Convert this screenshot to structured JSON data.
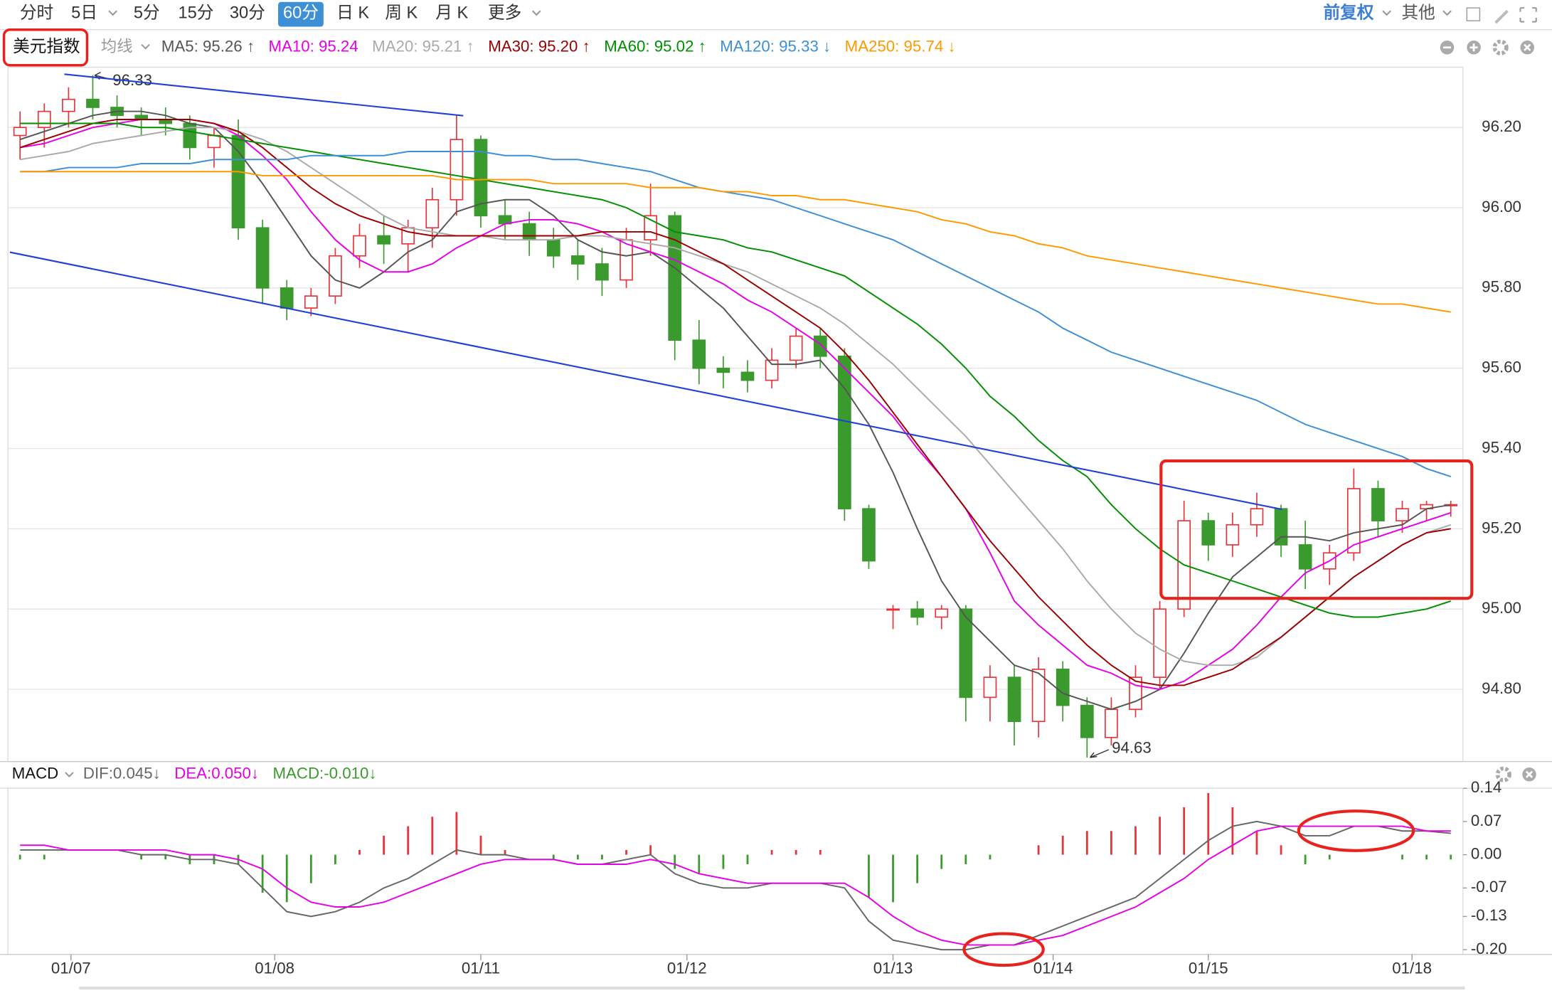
{
  "toolbar": {
    "tabs": [
      "分时",
      "5日",
      "5分",
      "15分",
      "30分",
      "60分",
      "日 K",
      "周 K",
      "月 K",
      "更多"
    ],
    "active_tab": 5,
    "right_menu": [
      "前复权",
      "其他"
    ]
  },
  "chart_data": [
    {
      "type": "candlestick",
      "symbol": "美元指数",
      "ma_menu": "均线",
      "up_color": "#e8333a",
      "down_color": "#3a9a2e",
      "grid": true,
      "open": [
        96.18,
        96.2,
        96.24,
        96.27,
        96.25,
        96.23,
        96.22,
        96.21,
        96.15,
        96.18,
        95.95,
        95.8,
        95.75,
        95.78,
        95.88,
        95.93,
        95.91,
        95.95,
        96.02,
        96.17,
        95.98,
        95.96,
        95.92,
        95.88,
        95.86,
        95.82,
        95.92,
        95.98,
        95.67,
        95.6,
        95.59,
        95.57,
        95.62,
        95.68,
        95.63,
        95.25,
        95.0,
        95.0,
        94.98,
        95.0,
        94.78,
        94.83,
        94.72,
        94.85,
        94.76,
        94.68,
        94.75,
        94.83,
        95.0,
        95.22,
        95.16,
        95.21,
        95.25,
        95.16,
        95.1,
        95.14,
        95.3,
        95.22,
        95.25,
        95.26
      ],
      "high": [
        96.24,
        96.26,
        96.3,
        96.33,
        96.28,
        96.25,
        96.25,
        96.23,
        96.2,
        96.22,
        95.97,
        95.82,
        95.8,
        95.9,
        95.96,
        95.98,
        95.97,
        96.05,
        96.23,
        96.18,
        96.02,
        95.99,
        95.95,
        95.92,
        95.9,
        95.95,
        96.06,
        95.99,
        95.72,
        95.63,
        95.62,
        95.65,
        95.7,
        95.7,
        95.65,
        95.26,
        95.01,
        95.02,
        95.01,
        95.01,
        94.86,
        94.86,
        94.88,
        94.87,
        94.78,
        94.78,
        94.86,
        95.02,
        95.27,
        95.24,
        95.24,
        95.29,
        95.26,
        95.22,
        95.16,
        95.35,
        95.32,
        95.27,
        95.27,
        95.27
      ],
      "low": [
        96.12,
        96.15,
        96.2,
        96.22,
        96.2,
        96.18,
        96.18,
        96.12,
        96.1,
        95.92,
        95.76,
        95.72,
        95.73,
        95.76,
        95.85,
        95.86,
        95.84,
        95.9,
        95.98,
        95.95,
        95.92,
        95.88,
        95.85,
        95.82,
        95.78,
        95.8,
        95.88,
        95.62,
        95.56,
        95.55,
        95.54,
        95.55,
        95.6,
        95.6,
        95.22,
        95.1,
        94.95,
        94.96,
        94.95,
        94.72,
        94.72,
        94.66,
        94.68,
        94.72,
        94.63,
        94.66,
        94.73,
        94.8,
        94.98,
        95.12,
        95.13,
        95.18,
        95.13,
        95.05,
        95.06,
        95.12,
        95.18,
        95.19,
        95.22,
        95.23
      ],
      "close": [
        96.2,
        96.24,
        96.27,
        96.25,
        96.23,
        96.22,
        96.21,
        96.15,
        96.18,
        95.95,
        95.8,
        95.75,
        95.78,
        95.88,
        95.93,
        95.91,
        95.95,
        96.02,
        96.17,
        95.98,
        95.96,
        95.92,
        95.88,
        95.86,
        95.82,
        95.92,
        95.98,
        95.67,
        95.6,
        95.59,
        95.57,
        95.62,
        95.68,
        95.63,
        95.25,
        95.12,
        95.0,
        94.98,
        95.0,
        94.78,
        94.83,
        94.72,
        94.85,
        94.76,
        94.68,
        94.75,
        94.83,
        95.0,
        95.22,
        95.16,
        95.21,
        95.25,
        95.16,
        95.1,
        95.14,
        95.3,
        95.22,
        95.25,
        95.26,
        95.26
      ],
      "series": [
        {
          "name": "MA5: 95.26 ↑",
          "color": "#555555",
          "values": [
            96.17,
            96.19,
            96.21,
            96.23,
            96.24,
            96.24,
            96.23,
            96.21,
            96.2,
            96.14,
            96.06,
            95.97,
            95.88,
            95.82,
            95.8,
            95.84,
            95.89,
            95.92,
            95.99,
            96.01,
            96.02,
            96.02,
            95.98,
            95.92,
            95.89,
            95.88,
            95.89,
            95.85,
            95.8,
            95.75,
            95.68,
            95.61,
            95.61,
            95.62,
            95.55,
            95.46,
            95.34,
            95.2,
            95.07,
            94.98,
            94.92,
            94.86,
            94.84,
            94.79,
            94.77,
            94.75,
            94.77,
            94.8,
            94.89,
            94.99,
            95.08,
            95.13,
            95.18,
            95.18,
            95.17,
            95.19,
            95.2,
            95.21,
            95.25,
            95.26
          ]
        },
        {
          "name": "MA10: 95.24",
          "color": "#e600e6",
          "values": [
            96.15,
            96.16,
            96.18,
            96.2,
            96.21,
            96.22,
            96.22,
            96.22,
            96.21,
            96.18,
            96.13,
            96.07,
            95.99,
            95.92,
            95.87,
            95.84,
            95.84,
            95.86,
            95.9,
            95.93,
            95.96,
            95.97,
            95.97,
            95.96,
            95.94,
            95.91,
            95.89,
            95.87,
            95.84,
            95.81,
            95.77,
            95.74,
            95.7,
            95.66,
            95.6,
            95.54,
            95.48,
            95.4,
            95.33,
            95.25,
            95.14,
            95.02,
            94.96,
            94.91,
            94.86,
            94.84,
            94.81,
            94.8,
            94.82,
            94.86,
            94.9,
            94.96,
            95.03,
            95.09,
            95.12,
            95.16,
            95.18,
            95.2,
            95.22,
            95.24
          ]
        },
        {
          "name": "MA20: 95.21 ↑",
          "color": "#aaaaaa",
          "values": [
            96.12,
            96.13,
            96.14,
            96.16,
            96.17,
            96.18,
            96.19,
            96.2,
            96.2,
            96.19,
            96.17,
            96.14,
            96.1,
            96.06,
            96.02,
            95.98,
            95.95,
            95.94,
            95.93,
            95.93,
            95.92,
            95.92,
            95.92,
            95.93,
            95.93,
            95.92,
            95.91,
            95.9,
            95.88,
            95.86,
            95.84,
            95.81,
            95.78,
            95.75,
            95.71,
            95.66,
            95.61,
            95.55,
            95.49,
            95.43,
            95.36,
            95.29,
            95.22,
            95.15,
            95.07,
            95.0,
            94.94,
            94.9,
            94.87,
            94.86,
            94.86,
            94.88,
            94.93,
            94.98,
            95.03,
            95.08,
            95.12,
            95.16,
            95.19,
            95.21
          ]
        },
        {
          "name": "MA30: 95.20 ↑",
          "color": "#9a0000",
          "values": [
            96.15,
            96.17,
            96.19,
            96.21,
            96.22,
            96.22,
            96.22,
            96.22,
            96.21,
            96.19,
            96.15,
            96.1,
            96.05,
            96.01,
            95.98,
            95.96,
            95.94,
            95.93,
            95.93,
            95.93,
            95.93,
            95.93,
            95.93,
            95.93,
            95.94,
            95.94,
            95.94,
            95.92,
            95.89,
            95.86,
            95.82,
            95.78,
            95.74,
            95.7,
            95.64,
            95.57,
            95.49,
            95.41,
            95.33,
            95.25,
            95.17,
            95.1,
            95.03,
            94.97,
            94.91,
            94.86,
            94.82,
            94.81,
            94.81,
            94.83,
            94.85,
            94.89,
            94.93,
            94.98,
            95.03,
            95.08,
            95.12,
            95.16,
            95.19,
            95.2
          ]
        },
        {
          "name": "MA60: 95.02 ↑",
          "color": "#008f00",
          "values": [
            96.21,
            96.21,
            96.21,
            96.21,
            96.21,
            96.2,
            96.2,
            96.19,
            96.18,
            96.17,
            96.16,
            96.15,
            96.14,
            96.13,
            96.12,
            96.11,
            96.1,
            96.09,
            96.08,
            96.07,
            96.06,
            96.05,
            96.04,
            96.03,
            96.02,
            96.0,
            95.97,
            95.94,
            95.93,
            95.92,
            95.9,
            95.89,
            95.87,
            95.85,
            95.83,
            95.79,
            95.75,
            95.71,
            95.66,
            95.6,
            95.53,
            95.48,
            95.42,
            95.37,
            95.33,
            95.26,
            95.2,
            95.15,
            95.11,
            95.09,
            95.07,
            95.05,
            95.03,
            95.01,
            94.99,
            94.98,
            94.98,
            94.99,
            95.0,
            95.02
          ]
        },
        {
          "name": "MA120: 95.33 ↓",
          "color": "#3d8fd6",
          "values": [
            96.09,
            96.09,
            96.1,
            96.1,
            96.1,
            96.11,
            96.11,
            96.11,
            96.12,
            96.12,
            96.12,
            96.12,
            96.13,
            96.13,
            96.13,
            96.13,
            96.14,
            96.14,
            96.14,
            96.14,
            96.13,
            96.13,
            96.12,
            96.12,
            96.11,
            96.1,
            96.09,
            96.07,
            96.05,
            96.04,
            96.03,
            96.02,
            96.0,
            95.98,
            95.96,
            95.94,
            95.92,
            95.89,
            95.86,
            95.83,
            95.8,
            95.77,
            95.74,
            95.7,
            95.67,
            95.64,
            95.62,
            95.6,
            95.58,
            95.56,
            95.54,
            95.52,
            95.49,
            95.46,
            95.44,
            95.42,
            95.4,
            95.38,
            95.35,
            95.33
          ]
        },
        {
          "name": "MA250: 95.74 ↓",
          "color": "#ff9900",
          "values": [
            96.09,
            96.09,
            96.09,
            96.09,
            96.09,
            96.09,
            96.09,
            96.09,
            96.09,
            96.09,
            96.08,
            96.08,
            96.08,
            96.08,
            96.08,
            96.08,
            96.08,
            96.08,
            96.07,
            96.07,
            96.07,
            96.07,
            96.06,
            96.06,
            96.06,
            96.06,
            96.05,
            96.05,
            96.05,
            96.04,
            96.04,
            96.03,
            96.03,
            96.02,
            96.02,
            96.01,
            96.0,
            95.99,
            95.97,
            95.96,
            95.94,
            95.93,
            95.91,
            95.9,
            95.88,
            95.87,
            95.86,
            95.85,
            95.84,
            95.83,
            95.82,
            95.81,
            95.8,
            95.79,
            95.78,
            95.77,
            95.76,
            95.76,
            95.75,
            95.74
          ]
        }
      ],
      "ylim": [
        94.62,
        96.35
      ],
      "yticks": [
        {
          "value": 94.8,
          "label": "94.80"
        },
        {
          "value": 95,
          "label": "95.00"
        },
        {
          "value": 95.2,
          "label": "95.20"
        },
        {
          "value": 95.4,
          "label": "95.40"
        },
        {
          "value": 95.6,
          "label": "95.60"
        },
        {
          "value": 95.8,
          "label": "95.80"
        },
        {
          "value": 96,
          "label": "96.00"
        },
        {
          "value": 96.2,
          "label": "96.20"
        }
      ]
    },
    {
      "type": "macd",
      "title": "MACD",
      "grid": false,
      "series": [
        {
          "name": "DIF:0.045↓",
          "color": "#666666",
          "kind": "line",
          "values": [
            0.01,
            0.01,
            0.01,
            0.01,
            0.01,
            0.0,
            0.0,
            -0.01,
            -0.01,
            -0.02,
            -0.07,
            -0.12,
            -0.13,
            -0.12,
            -0.1,
            -0.07,
            -0.05,
            -0.02,
            0.01,
            0.0,
            0.0,
            -0.01,
            -0.01,
            -0.02,
            -0.02,
            -0.01,
            0.0,
            -0.04,
            -0.06,
            -0.07,
            -0.07,
            -0.06,
            -0.06,
            -0.06,
            -0.07,
            -0.14,
            -0.18,
            -0.19,
            -0.2,
            -0.2,
            -0.19,
            -0.19,
            -0.17,
            -0.15,
            -0.13,
            -0.11,
            -0.09,
            -0.05,
            -0.01,
            0.03,
            0.06,
            0.07,
            0.06,
            0.04,
            0.04,
            0.06,
            0.06,
            0.05,
            0.05,
            0.045
          ]
        },
        {
          "name": "DEA:0.050↓",
          "color": "#e600e6",
          "kind": "line",
          "values": [
            0.02,
            0.02,
            0.01,
            0.01,
            0.01,
            0.01,
            0.01,
            0.0,
            0.0,
            -0.01,
            -0.03,
            -0.07,
            -0.1,
            -0.11,
            -0.11,
            -0.1,
            -0.08,
            -0.06,
            -0.04,
            -0.02,
            -0.01,
            -0.01,
            -0.01,
            -0.02,
            -0.02,
            -0.02,
            -0.01,
            -0.02,
            -0.04,
            -0.05,
            -0.06,
            -0.06,
            -0.06,
            -0.06,
            -0.06,
            -0.09,
            -0.13,
            -0.16,
            -0.18,
            -0.19,
            -0.19,
            -0.19,
            -0.18,
            -0.17,
            -0.15,
            -0.13,
            -0.11,
            -0.08,
            -0.05,
            -0.01,
            0.02,
            0.05,
            0.06,
            0.06,
            0.06,
            0.06,
            0.06,
            0.06,
            0.05,
            0.05
          ]
        },
        {
          "name": "MACD:-0.010↓",
          "color": "#3a9a2e",
          "up_color": "#e8333a",
          "kind": "bar",
          "values": [
            -0.01,
            -0.01,
            0.0,
            0.0,
            0.0,
            -0.01,
            -0.01,
            -0.02,
            -0.02,
            -0.02,
            -0.08,
            -0.1,
            -0.06,
            -0.02,
            0.01,
            0.04,
            0.06,
            0.08,
            0.09,
            0.04,
            0.01,
            0.0,
            -0.01,
            -0.01,
            -0.01,
            0.01,
            0.02,
            -0.03,
            -0.04,
            -0.03,
            -0.02,
            0.01,
            0.01,
            0.01,
            0.0,
            -0.09,
            -0.1,
            -0.06,
            -0.03,
            -0.02,
            -0.01,
            0.0,
            0.02,
            0.04,
            0.05,
            0.05,
            0.06,
            0.08,
            0.1,
            0.13,
            0.1,
            0.05,
            0.02,
            -0.02,
            -0.01,
            0.0,
            0.0,
            -0.01,
            -0.01,
            -0.01
          ]
        }
      ],
      "ylim": [
        -0.21,
        0.14
      ],
      "yticks": [
        0.14,
        0.07,
        {
          "value": 0,
          "label": "0.00"
        },
        -0.07,
        -0.13,
        {
          "value": -0.2,
          "label": "-0.20"
        }
      ],
      "xticks": [
        {
          "value": 2.1,
          "label": "01/07"
        },
        {
          "value": 10.5,
          "label": "01/08"
        },
        {
          "value": 19,
          "label": "01/11"
        },
        {
          "value": 27.5,
          "label": "01/12"
        },
        {
          "value": 36,
          "label": "01/13"
        },
        {
          "value": 42.6,
          "label": "01/14"
        },
        {
          "value": 49,
          "label": "01/15"
        },
        {
          "value": 57.4,
          "label": "01/18"
        }
      ]
    }
  ]
}
